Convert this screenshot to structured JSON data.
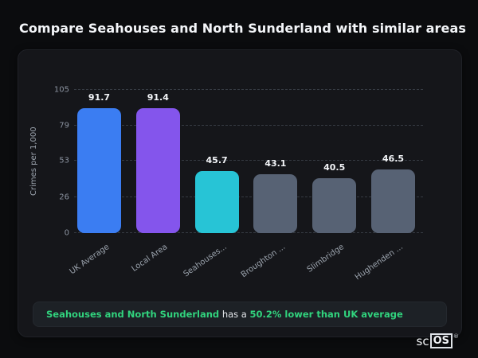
{
  "title": "Compare Seahouses and North Sunderland with similar areas",
  "chart_data": {
    "type": "bar",
    "categories": [
      "UK Average",
      "Local Area",
      "Seahouses...",
      "Broughton ...",
      "Slimbridge",
      "Hughenden ..."
    ],
    "values": [
      91.7,
      91.4,
      45.7,
      43.1,
      40.5,
      46.5
    ],
    "value_labels": [
      "91.7",
      "91.4",
      "45.7",
      "43.1",
      "40.5",
      "46.5"
    ],
    "bar_colors": [
      "#3b7df2",
      "#8455ec",
      "#27c4d6",
      "#576274",
      "#576274",
      "#576274"
    ],
    "ylabel": "Crimes per 1,000",
    "yticks": [
      0,
      26,
      53,
      79,
      105
    ],
    "ylim": [
      0,
      105
    ],
    "grid": "horizontal-dashed",
    "legend": "none"
  },
  "footer": {
    "area_name": "Seahouses and North Sunderland",
    "connector": " has a ",
    "stat": "50.2% lower than UK average"
  },
  "logo": {
    "prefix": "sc",
    "boxed": "OS",
    "registered": "®"
  }
}
